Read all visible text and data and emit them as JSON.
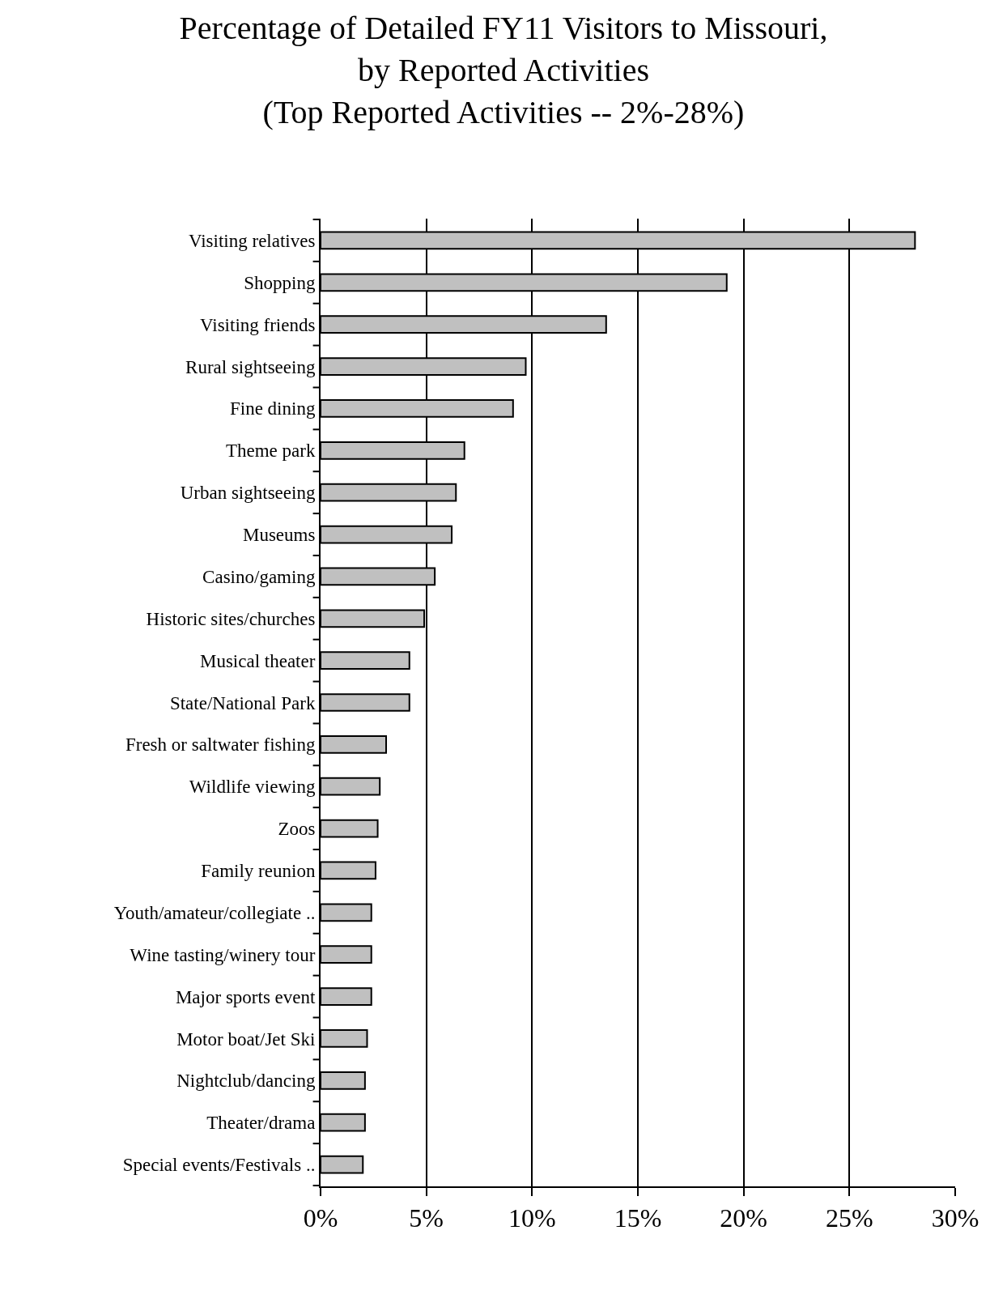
{
  "chart_data": {
    "type": "bar",
    "orientation": "horizontal",
    "title": "Percentage of Detailed FY11 Visitors to Missouri,\nby Reported Activities\n(Top Reported Activities -- 2%-28%)",
    "categories": [
      "Visiting relatives",
      "Shopping",
      "Visiting friends",
      "Rural sightseeing",
      "Fine dining",
      "Theme park",
      "Urban sightseeing",
      "Museums",
      "Casino/gaming",
      "Historic sites/churches",
      "Musical theater",
      "State/National Park",
      "Fresh or saltwater fishing",
      "Wildlife viewing",
      "Zoos",
      "Family reunion",
      "Youth/amateur/collegiate ..",
      "Wine tasting/winery tour",
      "Major sports event",
      "Motor boat/Jet Ski",
      "Nightclub/dancing",
      "Theater/drama",
      "Special events/Festivals .."
    ],
    "values": [
      28.1,
      19.2,
      13.5,
      9.7,
      9.1,
      6.8,
      6.4,
      6.2,
      5.4,
      4.9,
      4.2,
      4.2,
      3.1,
      2.8,
      2.7,
      2.6,
      2.4,
      2.4,
      2.4,
      2.2,
      2.1,
      2.1,
      2.0
    ],
    "color": "#c0c0c0",
    "xlim": [
      0,
      30
    ],
    "xticks": [
      {
        "value": 0,
        "label": "0%"
      },
      {
        "value": 5,
        "label": "5%"
      },
      {
        "value": 10,
        "label": "10%"
      },
      {
        "value": 15,
        "label": "15%"
      },
      {
        "value": 20,
        "label": "20%"
      },
      {
        "value": 25,
        "label": "25%"
      },
      {
        "value": 30,
        "label": "30%"
      }
    ],
    "grid": "x"
  }
}
